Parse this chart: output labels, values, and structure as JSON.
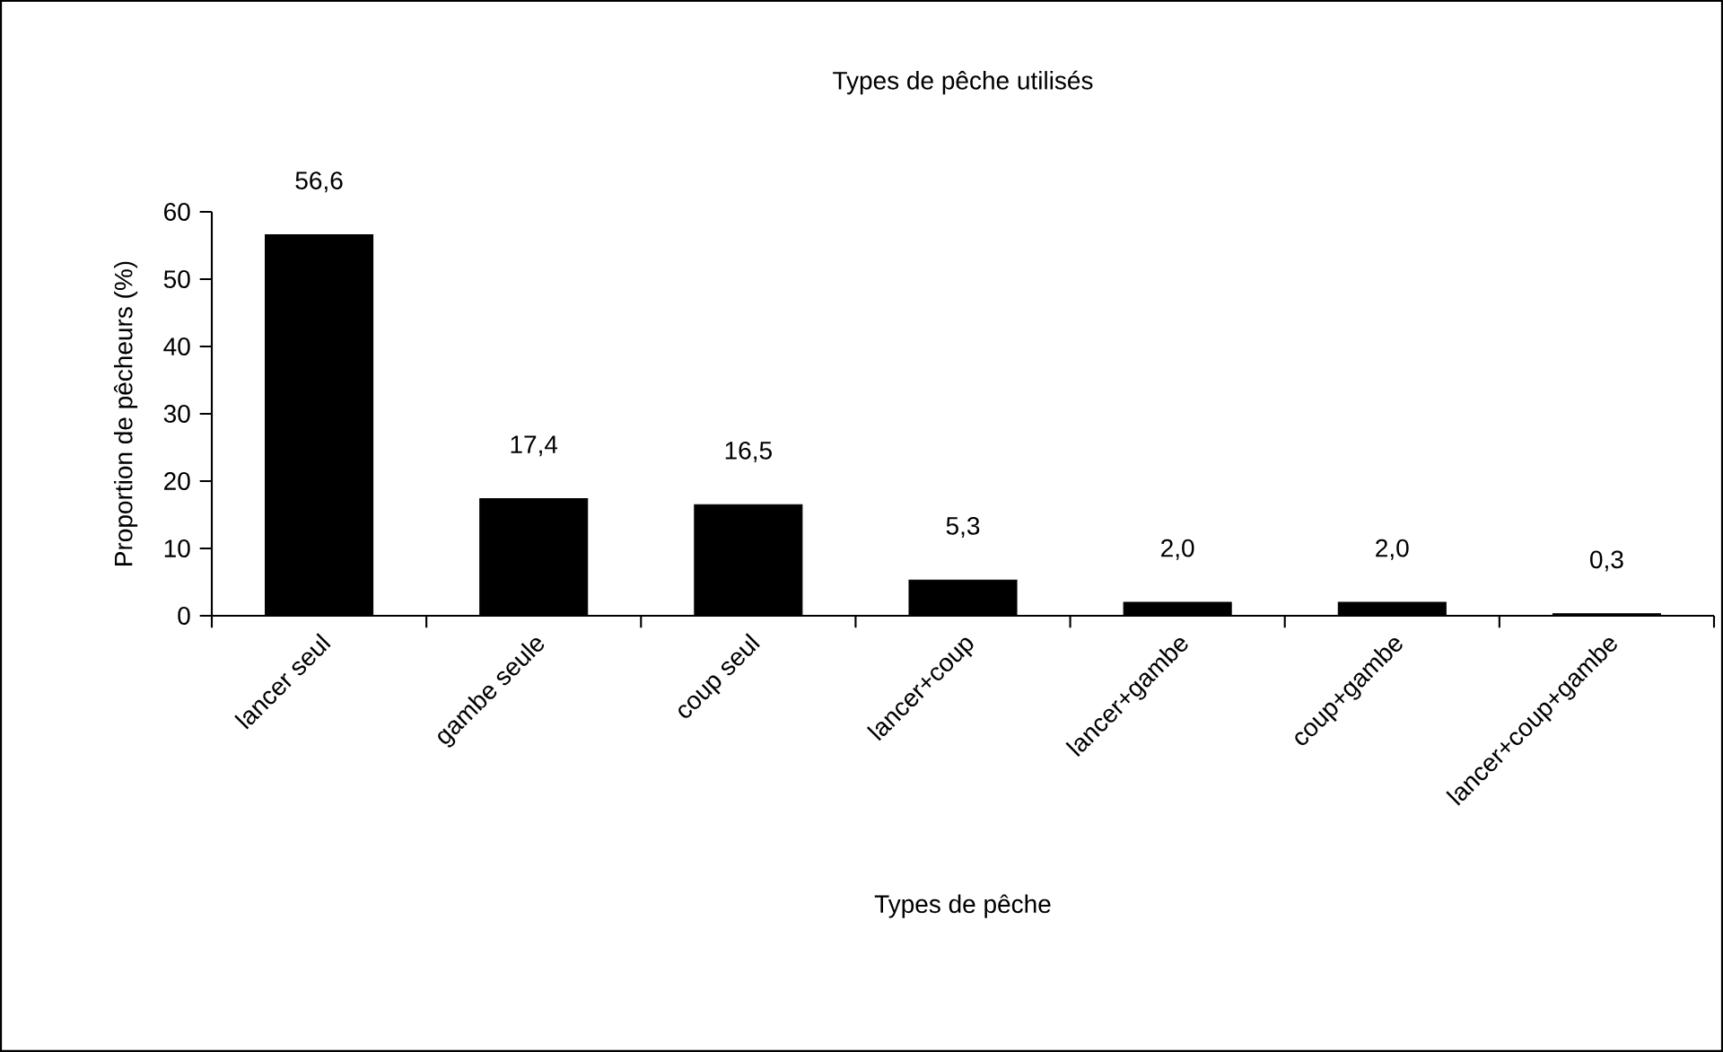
{
  "chart_data": {
    "type": "bar",
    "title": "Types de pêche utilisés",
    "xlabel": "Types de pêche",
    "ylabel": "Proportion de pêcheurs (%)",
    "categories": [
      "lancer seul",
      "gambe seule",
      "coup seul",
      "lancer+coup",
      "lancer+gambe",
      "coup+gambe",
      "lancer+coup+gambe"
    ],
    "values": [
      56.6,
      17.4,
      16.5,
      5.3,
      2.0,
      2.0,
      0.3
    ],
    "value_labels": [
      "56,6",
      "17,4",
      "16,5",
      "5,3",
      "2,0",
      "2,0",
      "0,3"
    ],
    "color": "#000000",
    "ylim": [
      0,
      60
    ],
    "yticks": [
      0,
      10,
      20,
      30,
      40,
      50,
      60
    ],
    "grid": false
  }
}
